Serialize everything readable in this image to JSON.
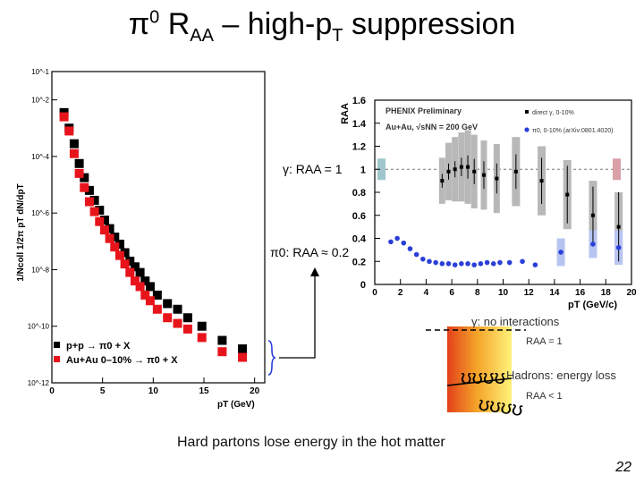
{
  "slide": {
    "title_pi": "π",
    "title_zero": "0",
    "title_r": " R",
    "title_aa": "AA",
    "title_rest": " – high-p",
    "title_t": "T",
    "title_end": " suppression",
    "page_number": "22",
    "caption": "Hard partons lose energy in the hot matter"
  },
  "annotations": {
    "gamma_raa": "γ: RAA = 1",
    "pi0_raa": "π0: RAA ≈ 0.2"
  },
  "cartoon": {
    "gamma_label": "γ: no interactions",
    "raa_eq1": "RAA = 1",
    "hadrons_label": "Hadrons: energy loss",
    "raa_lt1": "RAA < 1"
  },
  "colors": {
    "pp": "#000000",
    "auau": "#e8141b",
    "direct_gamma": "#000000",
    "pi0_raa": "#2a3fd8",
    "sys_band": "#b8b8b8",
    "pi0_sys": "#b8c4f0",
    "norm_left": "#9fc6cc",
    "norm_right": "#d9a0a8"
  },
  "chart_data": [
    {
      "type": "scatter",
      "title": "",
      "xlabel": "pT (GeV)",
      "ylabel": "1/Ncoll 1/2π pT dN/dpT",
      "xlim": [
        0,
        21
      ],
      "ylog": true,
      "ylim_exp": [
        -12,
        -1
      ],
      "xticks": [
        0,
        5,
        10,
        15,
        20
      ],
      "yticks": [
        "10^-1",
        "10^-2",
        "10^-4",
        "10^-6",
        "10^-8",
        "10^-10",
        "10^-12"
      ],
      "ytick_exps": [
        -1,
        -2,
        -4,
        -6,
        -8,
        -10,
        -12
      ],
      "legend": [
        "p+p → π0 + X",
        "Au+Au 0–10% → π0 + X"
      ],
      "series": [
        {
          "name": "p+p → π0 + X",
          "x": [
            1.2,
            1.7,
            2.2,
            2.7,
            3.2,
            3.7,
            4.2,
            4.7,
            5.2,
            5.7,
            6.2,
            6.7,
            7.2,
            7.7,
            8.2,
            8.7,
            9.2,
            9.7,
            10.4,
            11.4,
            12.4,
            13.4,
            14.8,
            16.8,
            18.8
          ],
          "y_exp": [
            -2.45,
            -3.0,
            -3.55,
            -4.25,
            -4.75,
            -5.2,
            -5.55,
            -5.9,
            -6.25,
            -6.55,
            -6.85,
            -7.1,
            -7.4,
            -7.7,
            -7.9,
            -8.1,
            -8.4,
            -8.6,
            -8.9,
            -9.2,
            -9.4,
            -9.7,
            -10.0,
            -10.5,
            -10.8
          ]
        },
        {
          "name": "Au+Au 0–10% → π0 + X",
          "x": [
            1.2,
            1.7,
            2.2,
            2.7,
            3.2,
            3.7,
            4.2,
            4.7,
            5.2,
            5.7,
            6.2,
            6.7,
            7.2,
            7.7,
            8.2,
            8.7,
            9.2,
            9.7,
            10.4,
            11.4,
            12.4,
            13.4,
            14.8,
            16.8,
            18.8
          ],
          "y_exp": [
            -2.6,
            -3.1,
            -3.9,
            -4.6,
            -5.1,
            -5.6,
            -5.95,
            -6.3,
            -6.6,
            -6.9,
            -7.2,
            -7.5,
            -7.8,
            -8.1,
            -8.4,
            -8.6,
            -8.9,
            -9.1,
            -9.4,
            -9.7,
            -9.9,
            -10.1,
            -10.4,
            -10.9,
            -11.1
          ]
        }
      ]
    },
    {
      "type": "scatter",
      "title": "PHENIX Preliminary",
      "subtitle": "Au+Au, √sNN = 200 GeV",
      "xlabel": "pT (GeV/c)",
      "ylabel": "RAA",
      "xlim": [
        0,
        20
      ],
      "ylim": [
        0,
        1.6
      ],
      "xticks": [
        0,
        2,
        4,
        6,
        8,
        10,
        12,
        14,
        16,
        18,
        20
      ],
      "yticks": [
        0,
        0.2,
        0.4,
        0.6,
        0.8,
        1,
        1.2,
        1.4,
        1.6
      ],
      "legend": [
        "direct γ, 0-10%",
        "π0, 0-10% (arXiv:0801.4020)"
      ],
      "series": [
        {
          "name": "direct γ, 0-10%",
          "x": [
            5.25,
            5.75,
            6.25,
            6.75,
            7.25,
            7.75,
            8.5,
            9.5,
            11,
            13,
            15,
            17,
            19
          ],
          "y": [
            0.9,
            0.98,
            1.0,
            1.02,
            1.02,
            0.98,
            0.95,
            0.92,
            0.98,
            0.9,
            0.78,
            0.6,
            0.5
          ],
          "err": [
            0.06,
            0.07,
            0.07,
            0.08,
            0.1,
            0.11,
            0.12,
            0.13,
            0.15,
            0.2,
            0.25,
            0.25,
            0.3
          ],
          "sys": [
            0.2,
            0.25,
            0.28,
            0.3,
            0.32,
            0.32,
            0.3,
            0.3,
            0.3,
            0.3,
            0.3,
            0.3,
            0.3
          ]
        },
        {
          "name": "π0, 0-10% (arXiv:0801.4020)",
          "x": [
            1.25,
            1.75,
            2.25,
            2.75,
            3.25,
            3.75,
            4.25,
            4.75,
            5.25,
            5.75,
            6.25,
            6.75,
            7.25,
            7.75,
            8.25,
            8.75,
            9.25,
            9.75,
            10.5,
            11.5,
            12.5,
            14.5,
            17,
            19
          ],
          "y": [
            0.37,
            0.4,
            0.36,
            0.31,
            0.26,
            0.22,
            0.2,
            0.19,
            0.18,
            0.18,
            0.17,
            0.18,
            0.18,
            0.17,
            0.18,
            0.19,
            0.18,
            0.19,
            0.19,
            0.2,
            0.17,
            0.28,
            0.35,
            0.32
          ]
        }
      ]
    }
  ]
}
